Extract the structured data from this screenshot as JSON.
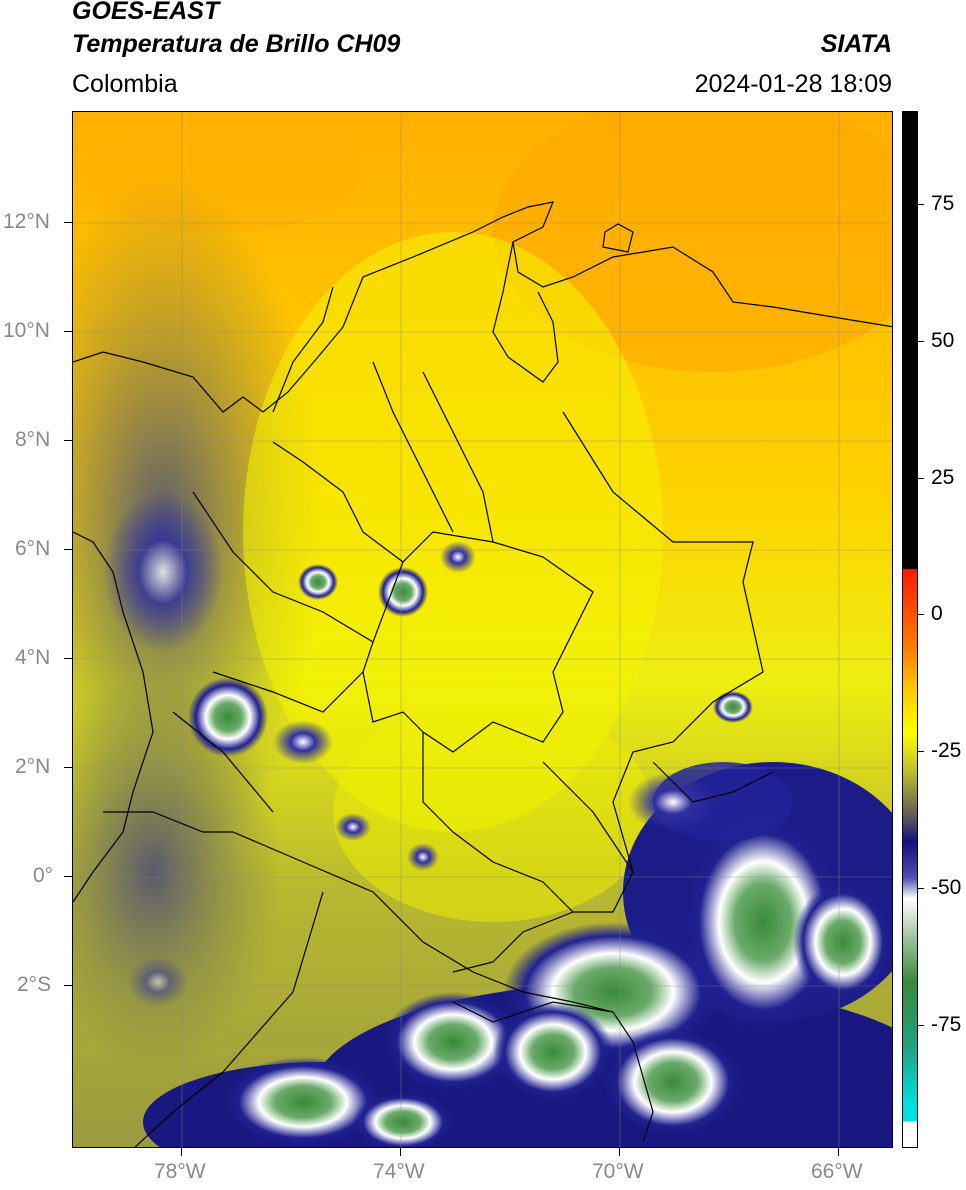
{
  "header": {
    "satellite": "GOES-EAST",
    "product": "Temperatura de Brillo CH09",
    "brand": "SIATA",
    "region": "Colombia",
    "datetime": "2024-01-28 18:09"
  },
  "map": {
    "lon_range": [
      -80,
      -65
    ],
    "lat_range": [
      -5,
      14
    ],
    "lon_ticks": [
      "78°W",
      "74°W",
      "70°W",
      "66°W"
    ],
    "lat_ticks": [
      "12°N",
      "10°N",
      "8°N",
      "6°N",
      "4°N",
      "2°N",
      "0°",
      "2°S"
    ],
    "gridlines": true
  },
  "colorbar": {
    "ticks": [
      "75",
      "50",
      "25",
      "0",
      "-25",
      "-50",
      "-75"
    ],
    "colors": {
      "black": "#000000",
      "red": "#ff1a00",
      "orange": "#ff9900",
      "yellow": "#ffff00",
      "olive": "#9a9a3a",
      "gray": "#5a5a6a",
      "navy": "#101080",
      "white": "#ffffff",
      "green": "#3a8a3a",
      "cyan": "#00d0d0"
    }
  }
}
